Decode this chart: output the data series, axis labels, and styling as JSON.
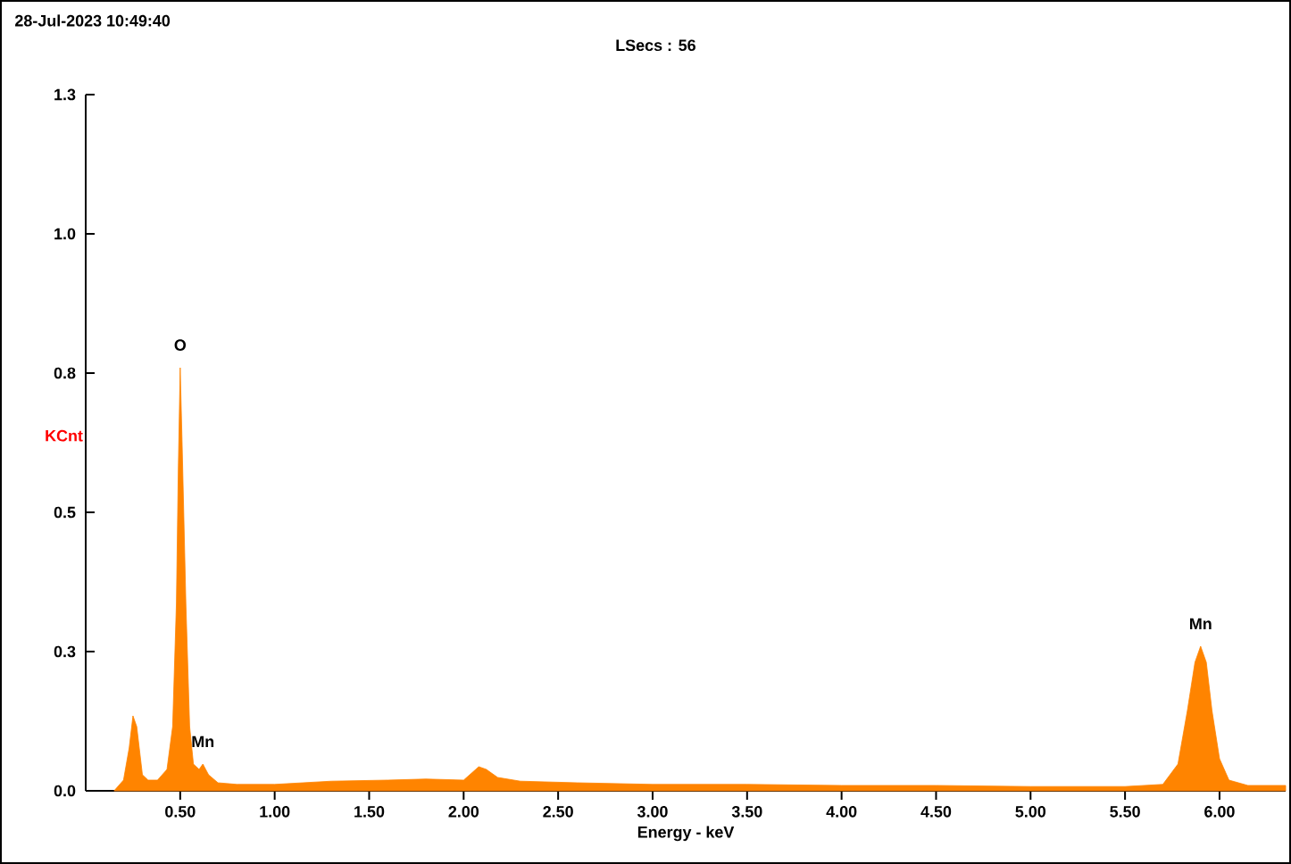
{
  "chart_data": {
    "type": "area",
    "title": "28-Jul-2023 10:49:40",
    "subtitle": "LSecs : 56",
    "xlabel": "Energy - keV",
    "ylabel": "KCnt",
    "x": [
      0.15,
      0.2,
      0.23,
      0.25,
      0.27,
      0.3,
      0.33,
      0.38,
      0.43,
      0.46,
      0.48,
      0.49,
      0.5,
      0.51,
      0.53,
      0.55,
      0.57,
      0.6,
      0.62,
      0.65,
      0.7,
      0.8,
      1.0,
      1.3,
      1.6,
      1.8,
      2.0,
      2.08,
      2.12,
      2.18,
      2.3,
      2.6,
      3.0,
      3.5,
      4.0,
      4.5,
      5.0,
      5.5,
      5.7,
      5.78,
      5.83,
      5.87,
      5.9,
      5.93,
      5.96,
      6.0,
      6.05,
      6.15,
      6.35
    ],
    "values": [
      0.0,
      0.02,
      0.08,
      0.14,
      0.12,
      0.03,
      0.02,
      0.02,
      0.04,
      0.12,
      0.35,
      0.6,
      0.79,
      0.65,
      0.35,
      0.12,
      0.05,
      0.04,
      0.05,
      0.03,
      0.015,
      0.012,
      0.012,
      0.018,
      0.02,
      0.022,
      0.02,
      0.045,
      0.04,
      0.025,
      0.018,
      0.015,
      0.012,
      0.012,
      0.01,
      0.01,
      0.008,
      0.008,
      0.012,
      0.05,
      0.15,
      0.24,
      0.27,
      0.24,
      0.15,
      0.06,
      0.02,
      0.01,
      0.01
    ],
    "color": "#ff8400",
    "xlim": [
      0,
      6.35
    ],
    "ylim": [
      0,
      1.3
    ],
    "xticks": [
      {
        "value": 0.5,
        "label": "0.50"
      },
      {
        "value": 1.0,
        "label": "1.00"
      },
      {
        "value": 1.5,
        "label": "1.50"
      },
      {
        "value": 2.0,
        "label": "2.00"
      },
      {
        "value": 2.5,
        "label": "2.50"
      },
      {
        "value": 3.0,
        "label": "3.00"
      },
      {
        "value": 3.5,
        "label": "3.50"
      },
      {
        "value": 4.0,
        "label": "4.00"
      },
      {
        "value": 4.5,
        "label": "4.50"
      },
      {
        "value": 5.0,
        "label": "5.00"
      },
      {
        "value": 5.5,
        "label": "5.50"
      },
      {
        "value": 6.0,
        "label": "6.00"
      }
    ],
    "yticks": [
      {
        "value": 0,
        "label": "0.0"
      },
      {
        "value": 0.26,
        "label": "0.3"
      },
      {
        "value": 0.52,
        "label": "0.5"
      },
      {
        "value": 0.78,
        "label": "0.8"
      },
      {
        "value": 1.04,
        "label": "1.0"
      },
      1.3
    ],
    "annotations": [
      {
        "text": "O",
        "x": 0.5,
        "y": 0.79
      },
      {
        "text": "Mn",
        "x": 0.62,
        "y": 0.05
      },
      {
        "text": "Mn",
        "x": 5.9,
        "y": 0.27
      }
    ]
  }
}
